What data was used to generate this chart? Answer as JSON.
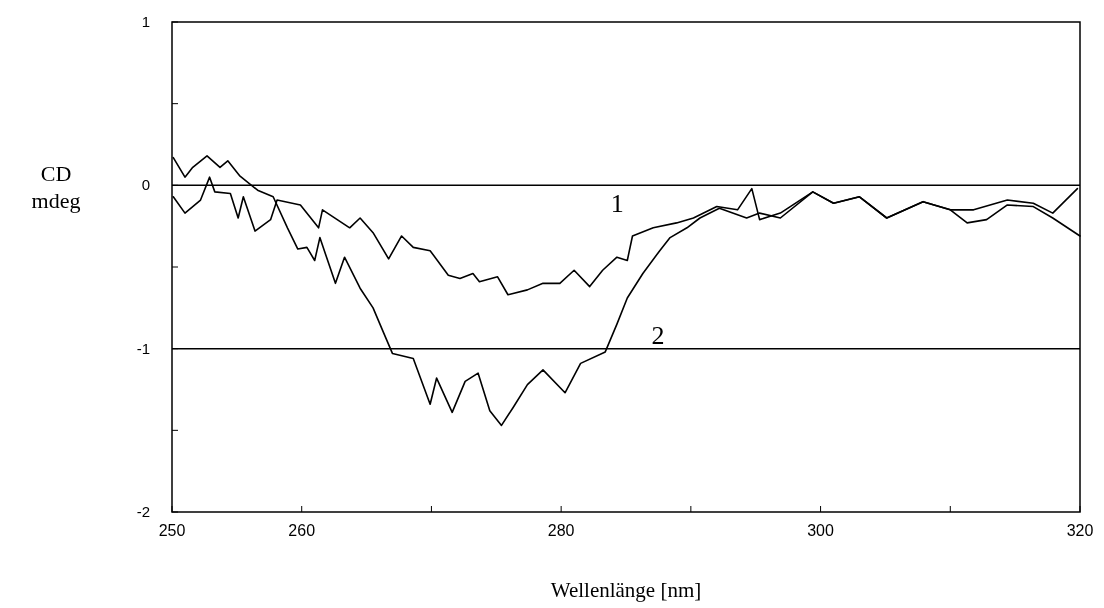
{
  "chart_data": {
    "type": "line",
    "xlabel": "Wellenlänge [nm]",
    "ylabel": "CD mdeg",
    "xlim": [
      250,
      320
    ],
    "xticks": [
      250,
      260,
      {
        "value": 270,
        "label": null
      },
      280,
      {
        "value": 290,
        "label": null
      },
      300,
      {
        "value": 310,
        "label": null
      },
      320
    ],
    "ylim": [
      -2,
      1
    ],
    "yticks": [
      -2,
      {
        "value": -1.5,
        "label": null
      },
      -1,
      {
        "value": -0.5,
        "label": null
      },
      0,
      {
        "value": 0.5,
        "label": null
      },
      1
    ],
    "grid": false,
    "marker": "none",
    "line_style": "solid",
    "ref_lines": [
      {
        "axis": "y",
        "value": 0,
        "color": "#000000"
      },
      {
        "axis": "y",
        "value": -1,
        "color": "#000000"
      }
    ],
    "series": [
      {
        "name": "1",
        "color": "#000000",
        "x": [
          250.1,
          251.0,
          252.2,
          252.9,
          253.3,
          254.5,
          255.1,
          255.5,
          256.4,
          257.6,
          258.1,
          259.9,
          261.3,
          261.6,
          263.7,
          264.5,
          265.5,
          266.7,
          267.7,
          268.6,
          269.9,
          271.3,
          272.2,
          273.2,
          273.7,
          275.1,
          275.9,
          277.4,
          278.6,
          279.9,
          281.0,
          282.2,
          283.2,
          284.3,
          285.1,
          285.5,
          287.1,
          288.9,
          290.2,
          292.0,
          293.6,
          294.7,
          295.3,
          296.9,
          299.4,
          301.0,
          303.0,
          305.1,
          307.9,
          310.0,
          311.3,
          312.8,
          314.4,
          316.4,
          317.9,
          320.0
        ],
        "values": [
          -0.07,
          -0.17,
          -0.09,
          0.05,
          -0.04,
          -0.05,
          -0.2,
          -0.07,
          -0.28,
          -0.21,
          -0.09,
          -0.12,
          -0.26,
          -0.15,
          -0.26,
          -0.2,
          -0.29,
          -0.45,
          -0.31,
          -0.38,
          -0.4,
          -0.55,
          -0.57,
          -0.54,
          -0.59,
          -0.56,
          -0.67,
          -0.64,
          -0.6,
          -0.6,
          -0.52,
          -0.62,
          -0.52,
          -0.44,
          -0.46,
          -0.31,
          -0.26,
          -0.23,
          -0.2,
          -0.13,
          -0.15,
          -0.02,
          -0.21,
          -0.17,
          -0.04,
          -0.11,
          -0.07,
          -0.2,
          -0.1,
          -0.15,
          -0.23,
          -0.21,
          -0.12,
          -0.13,
          -0.2,
          -0.31
        ]
      },
      {
        "name": "2",
        "color": "#000000",
        "x": [
          250.1,
          251.0,
          251.6,
          252.7,
          253.7,
          254.3,
          255.2,
          256.6,
          257.8,
          258.9,
          259.7,
          260.4,
          261.0,
          261.4,
          262.6,
          263.3,
          264.5,
          265.5,
          266.3,
          267.0,
          268.6,
          269.9,
          270.4,
          271.6,
          272.6,
          273.6,
          274.5,
          275.4,
          276.3,
          277.4,
          278.6,
          280.3,
          281.5,
          283.4,
          284.3,
          285.1,
          286.3,
          287.6,
          288.4,
          289.7,
          290.7,
          292.2,
          294.3,
          295.3,
          296.9,
          299.4,
          301.0,
          303.0,
          305.1,
          307.9,
          310.0,
          311.8,
          314.4,
          316.4,
          317.9,
          319.8
        ],
        "values": [
          0.17,
          0.05,
          0.11,
          0.18,
          0.11,
          0.15,
          0.06,
          -0.03,
          -0.07,
          -0.26,
          -0.39,
          -0.38,
          -0.46,
          -0.32,
          -0.6,
          -0.44,
          -0.63,
          -0.75,
          -0.9,
          -1.03,
          -1.06,
          -1.34,
          -1.18,
          -1.39,
          -1.2,
          -1.15,
          -1.38,
          -1.47,
          -1.36,
          -1.22,
          -1.13,
          -1.27,
          -1.09,
          -1.02,
          -0.85,
          -0.69,
          -0.54,
          -0.4,
          -0.32,
          -0.26,
          -0.2,
          -0.14,
          -0.2,
          -0.17,
          -0.2,
          -0.04,
          -0.11,
          -0.07,
          -0.2,
          -0.1,
          -0.15,
          -0.15,
          -0.09,
          -0.11,
          -0.17,
          -0.02
        ]
      }
    ]
  }
}
